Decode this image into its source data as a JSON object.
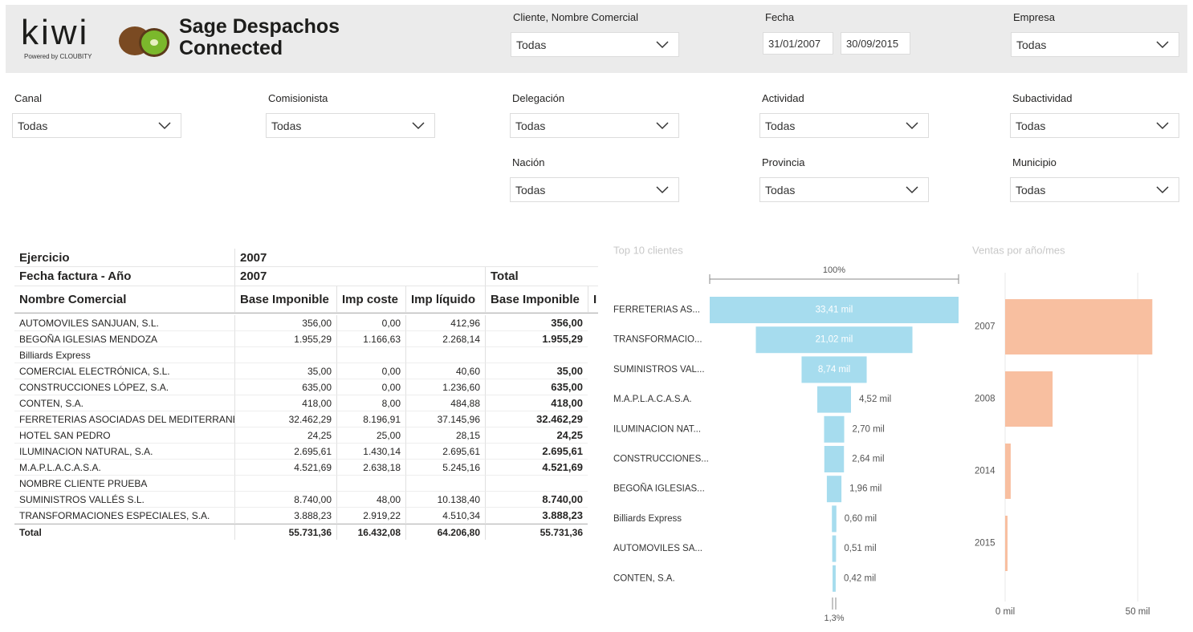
{
  "header": {
    "logo": "kiwi",
    "powered_by": "Powered by CLOUBITY",
    "title_lines": [
      "Sage Despachos",
      "Connected"
    ]
  },
  "filters": [
    {
      "label": "Cliente, Nombre Comercial",
      "value": "Todas"
    },
    {
      "label": "Fecha",
      "values": [
        "31/01/2007",
        "30/09/2015"
      ]
    },
    {
      "label": "Empresa",
      "value": "Todas"
    },
    {
      "label": "Canal",
      "value": "Todas"
    },
    {
      "label": "Comisionista",
      "value": "Todas"
    },
    {
      "label": "Delegación",
      "value": "Todas"
    },
    {
      "label": "Actividad",
      "value": "Todas"
    },
    {
      "label": "Subactividad",
      "value": "Todas"
    },
    {
      "label": "Nación",
      "value": "Todas"
    },
    {
      "label": "Provincia",
      "value": "Todas"
    },
    {
      "label": "Municipio",
      "value": "Todas"
    }
  ],
  "table": {
    "header_rows": [
      [
        "Ejercicio",
        "2007"
      ],
      [
        "Fecha factura - Año",
        "2007",
        "Total"
      ],
      [
        "Nombre Comercial",
        "Base Imponible",
        "Imp coste",
        "Imp líquido",
        "Base Imponible",
        "I"
      ]
    ],
    "rows": [
      [
        "AUTOMOVILES SANJUAN, S.L.",
        "356,00",
        "0,00",
        "412,96",
        "356,00"
      ],
      [
        "BEGOÑA IGLESIAS MENDOZA",
        "1.955,29",
        "1.166,63",
        "2.268,14",
        "1.955,29"
      ],
      [
        "Billiards Express"
      ],
      [
        "COMERCIAL ELECTRÓNICA, S.L.",
        "35,00",
        "0,00",
        "40,60",
        "35,00"
      ],
      [
        "CONSTRUCCIONES LÓPEZ, S.A.",
        "635,00",
        "0,00",
        "1.236,60",
        "635,00"
      ],
      [
        "CONTEN, S.A.",
        "418,00",
        "8,00",
        "484,88",
        "418,00"
      ],
      [
        "FERRETERIAS ASOCIADAS DEL MEDITERRANEO",
        "32.462,29",
        "8.196,91",
        "37.145,96",
        "32.462,29"
      ],
      [
        "HOTEL SAN PEDRO",
        "24,25",
        "25,00",
        "28,15",
        "24,25"
      ],
      [
        "ILUMINACION NATURAL, S.A.",
        "2.695,61",
        "1.430,14",
        "2.695,61",
        "2.695,61"
      ],
      [
        "M.A.P.L.A.C.A.S.A.",
        "4.521,69",
        "2.638,18",
        "5.245,16",
        "4.521,69"
      ],
      [
        "NOMBRE CLIENTE PRUEBA"
      ],
      [
        "SUMINISTROS VALLÉS S.L.",
        "8.740,00",
        "48,00",
        "10.138,40",
        "8.740,00"
      ],
      [
        "TRANSFORMACIONES ESPECIALES, S.A.",
        "3.888,23",
        "2.919,22",
        "4.510,34",
        "3.888,23"
      ]
    ],
    "total": [
      "Total",
      "55.731,36",
      "16.432,08",
      "64.206,80",
      "55.731,36"
    ]
  },
  "chart_data": [
    {
      "type": "funnel",
      "title": "Top 10 clientes",
      "categories": [
        "FERRETERIAS AS...",
        "TRANSFORMACIO...",
        "SUMINISTROS VAL...",
        "M.A.P.L.A.C.A.S.A.",
        "ILUMINACION NAT...",
        "CONSTRUCCIONES...",
        "BEGOÑA IGLESIAS...",
        "Billiards Express",
        "AUTOMOVILES SA...",
        "CONTEN, S.A."
      ],
      "values": [
        33.41,
        21.02,
        8.74,
        4.52,
        2.7,
        2.64,
        1.96,
        0.6,
        0.51,
        0.42
      ],
      "value_labels": [
        "33,41 mil",
        "21,02 mil",
        "8,74 mil",
        "4,52 mil",
        "2,70 mil",
        "2,64 mil",
        "1,96 mil",
        "0,60 mil",
        "0,51 mil",
        "0,42 mil"
      ],
      "top_label": "100%",
      "bottom_label": "1,3%",
      "color": "#a6dcee"
    },
    {
      "type": "bar",
      "orientation": "horizontal",
      "title": "Ventas por año/mes",
      "categories": [
        "2007",
        "2008",
        "2014",
        "2015"
      ],
      "values": [
        55.5,
        17.9,
        2.1,
        0.9
      ],
      "xlim": [
        0,
        66
      ],
      "xticks": [
        {
          "value": 0,
          "label": "0 mil"
        },
        {
          "value": 50,
          "label": "50 mil"
        }
      ],
      "grid": true,
      "color": "#f8bfa0"
    }
  ]
}
